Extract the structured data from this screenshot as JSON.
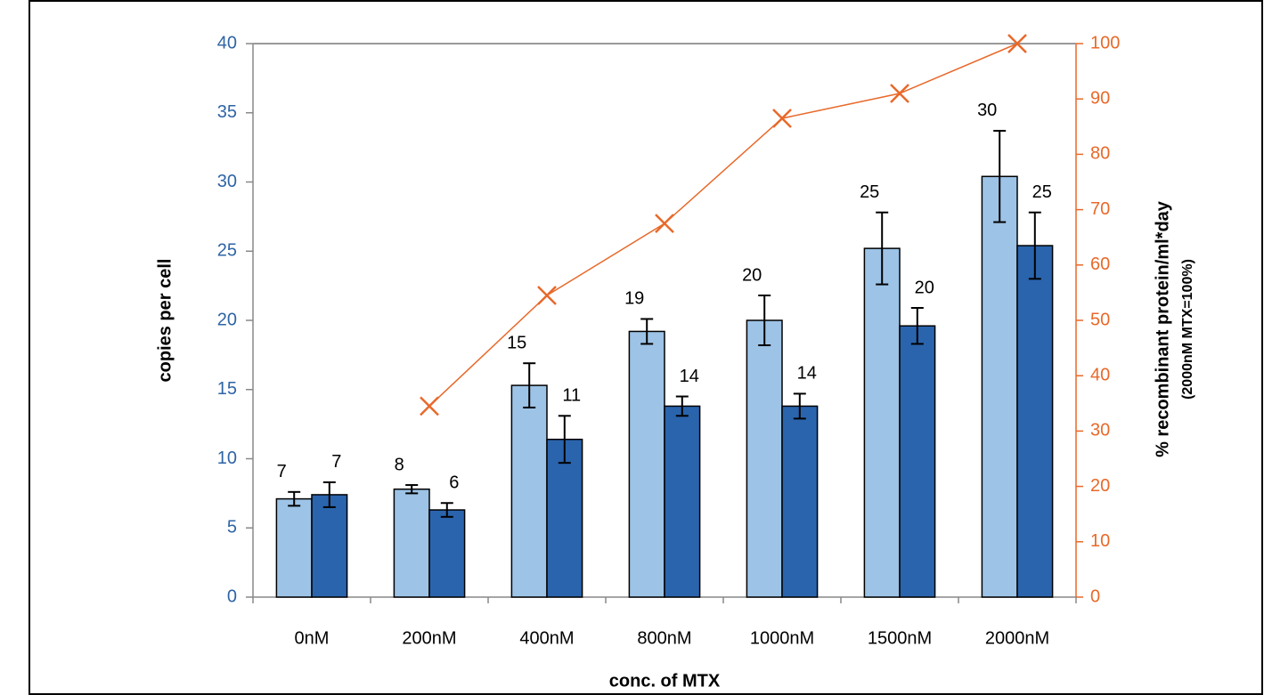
{
  "chart_data": {
    "type": "bar",
    "x_title": "conc. of MTX",
    "y_title": "copies per cell",
    "y2_title": "% recombinant protein/ml*day",
    "y2_subtitle": "(2000nM MTX=100%)",
    "categories": [
      "0nM",
      "200nM",
      "400nM",
      "800nM",
      "1000nM",
      "1500nM",
      "2000nM"
    ],
    "series": [
      {
        "type": "bar",
        "color": "#9dc3e6",
        "values": [
          7.1,
          7.8,
          15.3,
          19.2,
          20.0,
          25.2,
          30.4
        ],
        "value_labels": [
          "7",
          "8",
          "15",
          "19",
          "20",
          "25",
          "30"
        ],
        "errors": [
          0.5,
          0.3,
          1.6,
          0.9,
          1.8,
          2.6,
          3.3
        ]
      },
      {
        "type": "bar",
        "color": "#2a64ad",
        "values": [
          7.4,
          6.3,
          11.4,
          13.8,
          13.8,
          19.6,
          25.4
        ],
        "value_labels": [
          "7",
          "6",
          "11",
          "14",
          "14",
          "20",
          "25"
        ],
        "errors": [
          0.9,
          0.5,
          1.7,
          0.7,
          0.9,
          1.3,
          2.4
        ]
      },
      {
        "type": "line",
        "axis": "y2",
        "color": "#e8692a",
        "values": [
          null,
          34.5,
          54.5,
          67.5,
          86.5,
          91,
          100
        ]
      }
    ],
    "ylim": [
      0,
      40
    ],
    "yticks": [
      0,
      5,
      10,
      15,
      20,
      25,
      30,
      35,
      40
    ],
    "y_tick_color": "#2e64a5",
    "y2lim": [
      0,
      100
    ],
    "y2ticks": [
      0,
      10,
      20,
      30,
      40,
      50,
      60,
      70,
      80,
      90,
      100
    ],
    "y2_tick_color": "#e8692a"
  }
}
